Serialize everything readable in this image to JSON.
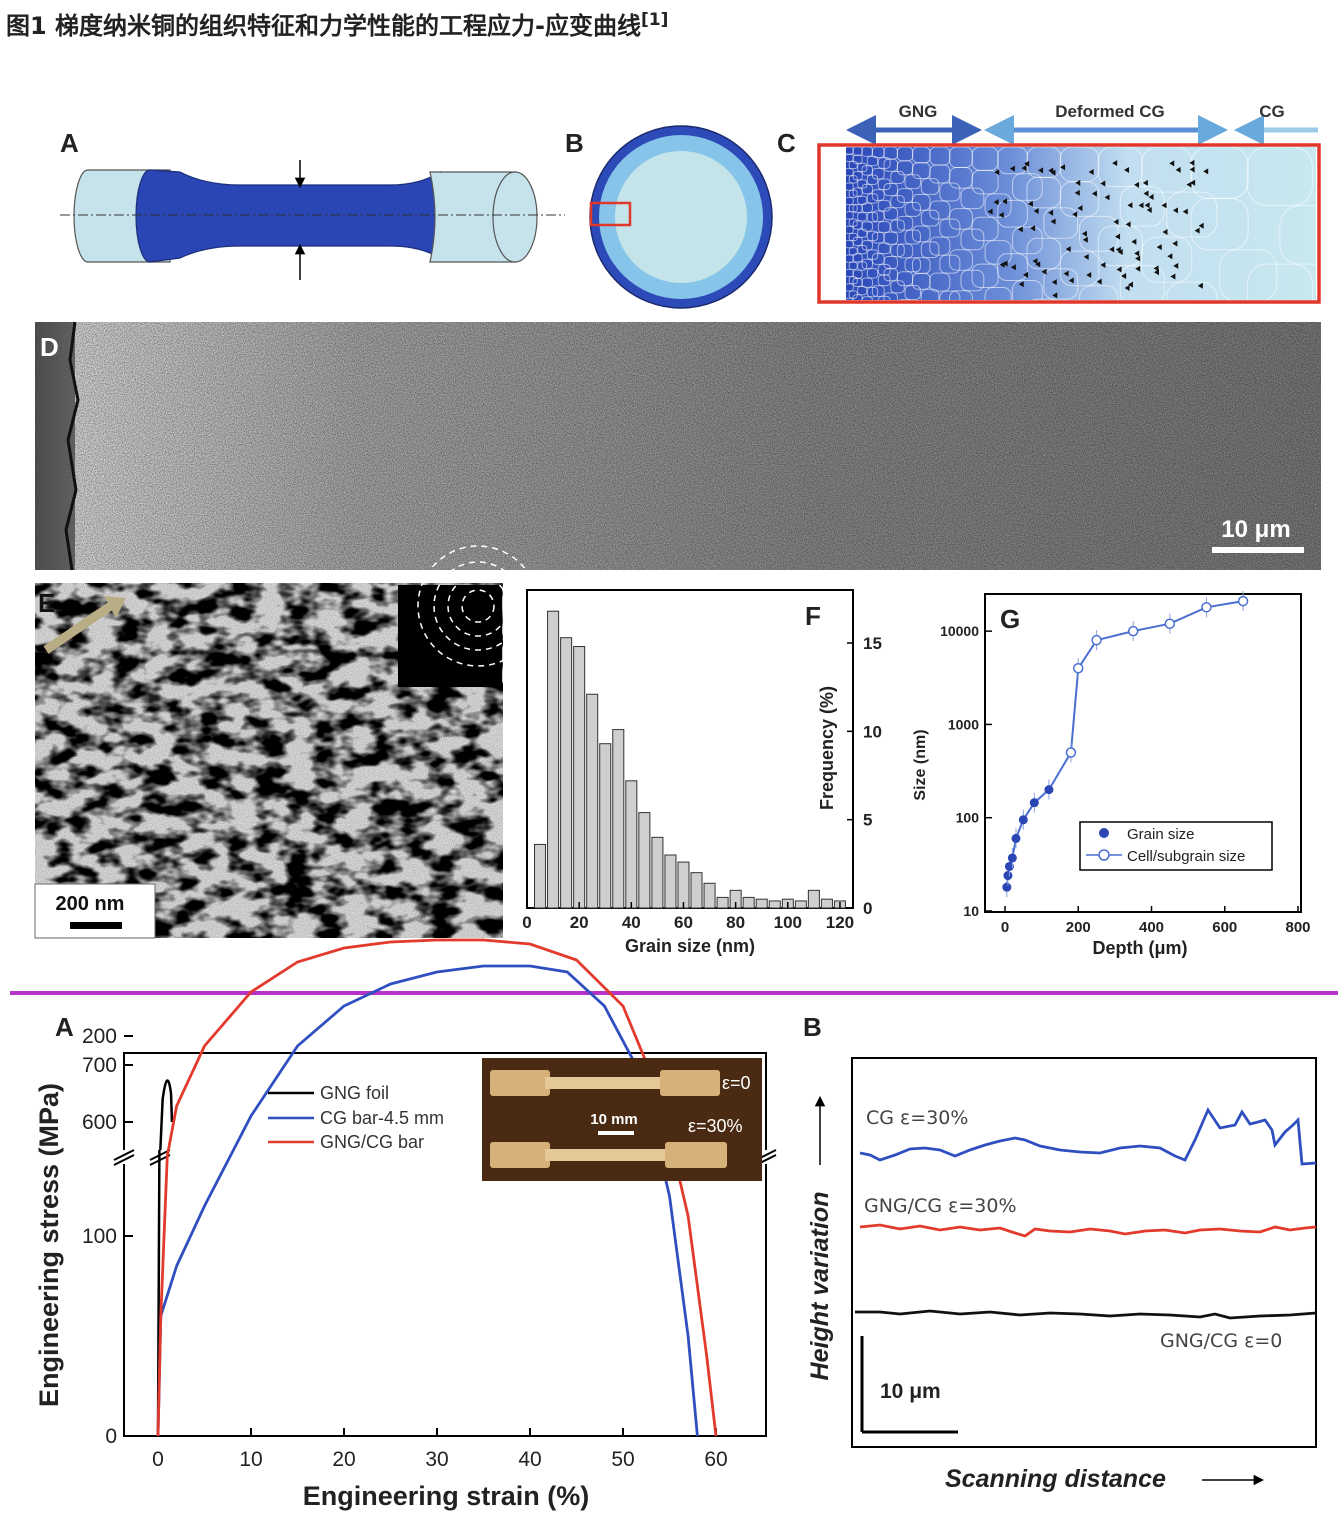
{
  "caption": {
    "text": "图1 梯度纳米铜的组织特征和力学性能的工程应力-应变曲线",
    "ref": "[1]"
  },
  "top_figure": {
    "panel_labels": [
      "A",
      "B",
      "C",
      "D",
      "E",
      "F",
      "G"
    ],
    "panel_c": {
      "zones": [
        "GNG",
        "Deformed CG",
        "CG"
      ]
    },
    "panel_d": {
      "scale_bar": "10 μm"
    },
    "panel_e": {
      "scale_bar": "200 nm"
    },
    "panel_f": {
      "x_ticks": [
        "0",
        "20",
        "40",
        "60",
        "80",
        "100",
        "120"
      ],
      "y_ticks": [
        "0",
        "5",
        "10",
        "15"
      ],
      "xlabel": "Grain size (nm)",
      "ylabel": "Frequency (%)"
    },
    "panel_g": {
      "x_ticks": [
        "0",
        "200",
        "400",
        "600",
        "800"
      ],
      "y_ticks": [
        "10",
        "100",
        "1000",
        "10000"
      ],
      "xlabel": "Depth (μm)",
      "ylabel": "Size (nm)",
      "legend": [
        "Grain size",
        "Cell/subgrain size"
      ]
    }
  },
  "bottom_figure": {
    "panel_labels": [
      "A",
      "B"
    ],
    "panel_a": {
      "xlabel": "Engineering strain (%)",
      "ylabel": "Engineering stress (MPa)",
      "x_ticks": [
        "0",
        "10",
        "20",
        "30",
        "40",
        "50",
        "60"
      ],
      "y_ticks_lower": [
        "0",
        "100",
        "200"
      ],
      "y_ticks_upper": [
        "600",
        "700"
      ],
      "legend": [
        "GNG foil",
        "CG bar-4.5 mm",
        "GNG/CG bar"
      ],
      "inset": {
        "top": "ε=0",
        "bottom": "ε=30%",
        "scale": "10 mm"
      }
    },
    "panel_b": {
      "xlabel": "Scanning distance",
      "ylabel": "Height variation",
      "curve_labels": [
        "CG ε=30%",
        "GNG/CG ε=30%",
        "GNG/CG ε=0"
      ],
      "scale_bar": "10 μm"
    }
  },
  "chart_data": [
    {
      "type": "bar",
      "panel": "F",
      "title": "",
      "xlabel": "Grain size (nm)",
      "ylabel": "Frequency (%)",
      "xlim": [
        0,
        125
      ],
      "ylim": [
        0,
        18
      ],
      "bin_width": 5,
      "categories": [
        5,
        10,
        15,
        20,
        25,
        30,
        35,
        40,
        45,
        50,
        55,
        60,
        65,
        70,
        75,
        80,
        85,
        90,
        95,
        100,
        105,
        110,
        115,
        120
      ],
      "values": [
        3.6,
        16.8,
        15.3,
        14.8,
        12.1,
        9.3,
        10.1,
        7.2,
        5.4,
        4.0,
        3.0,
        2.6,
        2.0,
        1.4,
        0.6,
        1.0,
        0.6,
        0.5,
        0.4,
        0.5,
        0.4,
        1.0,
        0.5,
        0.4
      ]
    },
    {
      "type": "scatter",
      "panel": "G",
      "title": "",
      "xlabel": "Depth (μm)",
      "ylabel": "Size (nm)",
      "xlim": [
        0,
        800
      ],
      "ylim": [
        10,
        25000
      ],
      "y_scale": "log",
      "legend": "bottom-right",
      "series": [
        {
          "name": "Grain size",
          "x": [
            5,
            8,
            12,
            20,
            30,
            50,
            80,
            120
          ],
          "y": [
            18,
            24,
            30,
            37,
            60,
            95,
            145,
            200
          ]
        },
        {
          "name": "Cell/subgrain size",
          "x": [
            180,
            200,
            250,
            350,
            450,
            550,
            650
          ],
          "y": [
            500,
            4000,
            8000,
            10000,
            12000,
            18000,
            21000
          ]
        }
      ]
    },
    {
      "type": "line",
      "panel": "A",
      "title": "",
      "xlabel": "Engineering strain (%)",
      "ylabel": "Engineering stress (MPa)",
      "xlim": [
        0,
        65
      ],
      "ylim": [
        0,
        700
      ],
      "legend": "top-center",
      "series": [
        {
          "name": "GNG foil",
          "x": [
            0,
            0.2,
            0.4,
            0.6,
            0.8,
            1.0,
            1.2,
            1.4,
            1.6,
            1.8
          ],
          "y": [
            0,
            200,
            420,
            600,
            650,
            665,
            660,
            640,
            610,
            600
          ]
        },
        {
          "name": "CG bar-4.5 mm",
          "x": [
            0,
            0.3,
            2,
            5,
            10,
            15,
            20,
            25,
            30,
            35,
            40,
            44,
            48,
            52,
            55,
            57,
            58
          ],
          "y": [
            0,
            60,
            85,
            115,
            160,
            195,
            215,
            226,
            232,
            235,
            235,
            232,
            215,
            180,
            120,
            50,
            0
          ]
        },
        {
          "name": "GNG/CG bar",
          "x": [
            0,
            0.3,
            1,
            2,
            5,
            10,
            15,
            20,
            25,
            30,
            35,
            40,
            45,
            50,
            54,
            57,
            59,
            60
          ],
          "y": [
            0,
            60,
            140,
            165,
            195,
            222,
            237,
            244,
            247,
            248,
            248,
            246,
            238,
            215,
            170,
            110,
            40,
            0
          ]
        }
      ]
    }
  ]
}
